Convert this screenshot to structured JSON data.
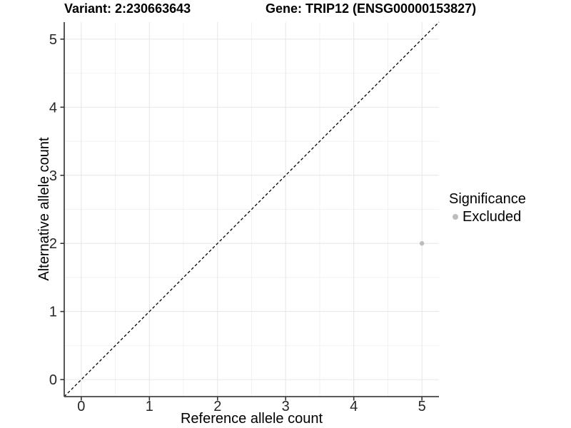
{
  "chart_data": {
    "type": "scatter",
    "title_left": "Variant: 2:230663643",
    "title_right": "Gene: TRIP12 (ENSG00000153827)",
    "xlabel": "Reference allele count",
    "ylabel": "Alternative allele count",
    "xlim": [
      -0.25,
      5.25
    ],
    "ylim": [
      -0.25,
      5.25
    ],
    "x_ticks": [
      0,
      1,
      2,
      3,
      4,
      5
    ],
    "y_ticks": [
      0,
      1,
      2,
      3,
      4,
      5
    ],
    "x_minor": [
      0.5,
      1.5,
      2.5,
      3.5,
      4.5
    ],
    "y_minor": [
      0.5,
      1.5,
      2.5,
      3.5,
      4.5
    ],
    "grid": "major+minor",
    "identity_line": {
      "slope": 1,
      "intercept": 0,
      "style": "dashed",
      "color": "#000000"
    },
    "series": [
      {
        "name": "Excluded",
        "color": "#bdbdbd",
        "points": [
          {
            "x": 5,
            "y": 2
          }
        ]
      }
    ],
    "legend": {
      "title": "Significance",
      "position": "right",
      "items": [
        {
          "label": "Excluded",
          "color": "#bdbdbd"
        }
      ]
    }
  },
  "colors": {
    "background": "#ffffff",
    "grid_major": "#e6e6e6",
    "grid_minor": "#f2f2f2",
    "axis_line": "#454545",
    "tick_mark": "#333333",
    "tick_label": "#262626",
    "point": "#bdbdbd"
  }
}
